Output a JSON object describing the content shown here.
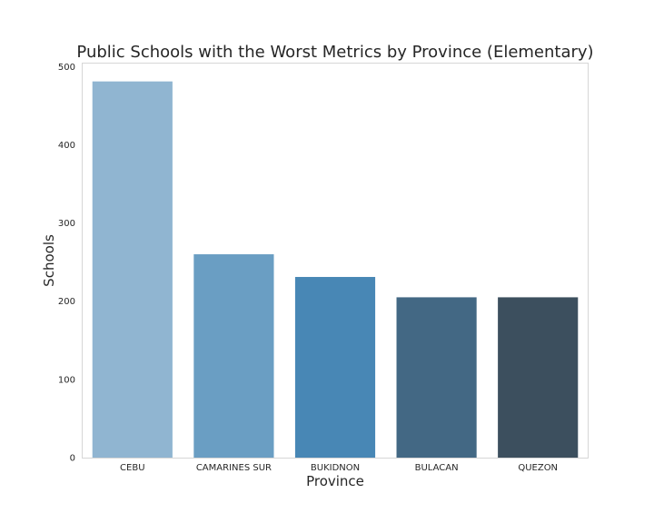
{
  "chart_data": {
    "type": "bar",
    "title": "Public Schools with the Worst Metrics by Province (Elementary)",
    "xlabel": "Province",
    "ylabel": "Schools",
    "categories": [
      "CEBU",
      "CAMARINES SUR",
      "BUKIDNON",
      "BULACAN",
      "QUEZON"
    ],
    "values": [
      481,
      260,
      231,
      205,
      205
    ],
    "colors": [
      "#90b5d1",
      "#6a9ec3",
      "#4887b5",
      "#436884",
      "#3c4f5e"
    ],
    "ylim": [
      0,
      505
    ],
    "yticks": [
      0,
      100,
      200,
      300,
      400,
      500
    ],
    "grid": false,
    "legend": "none"
  }
}
